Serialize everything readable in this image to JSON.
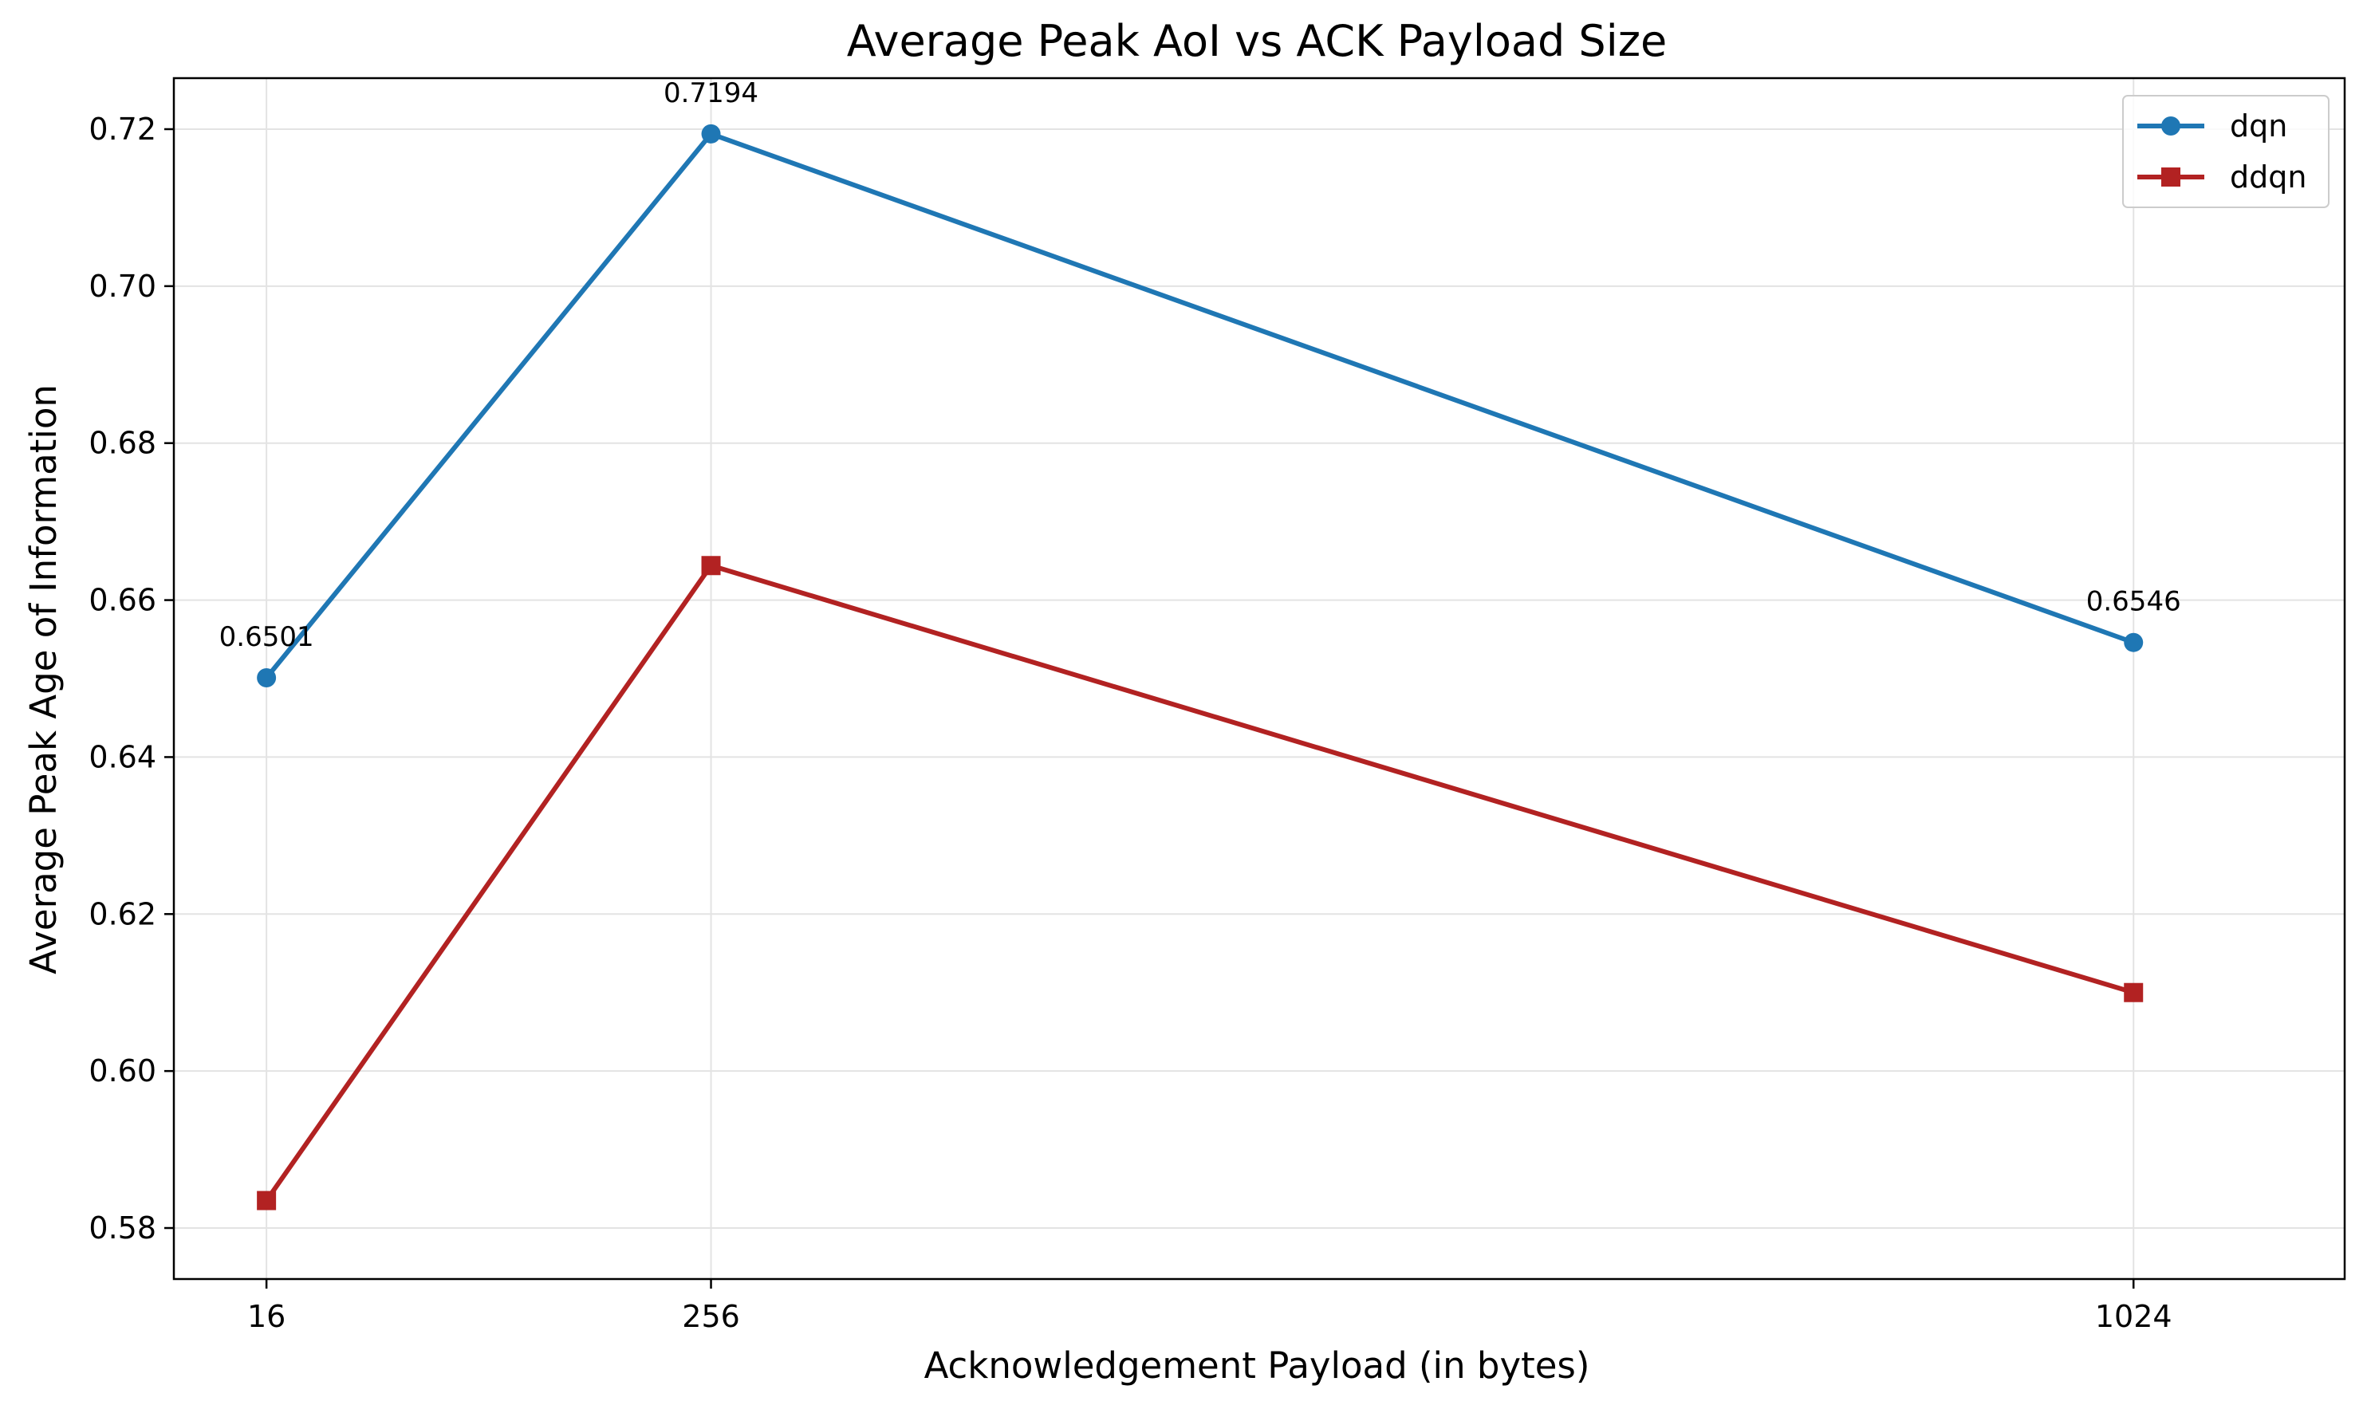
{
  "chart_data": {
    "type": "line",
    "title": "Average Peak AoI vs ACK Payload Size",
    "xlabel": "Acknowledgement Payload (in bytes)",
    "ylabel": "Average Peak Age of Information",
    "x": [
      16,
      256,
      1024
    ],
    "x_tick_labels": [
      "16",
      "256",
      "1024"
    ],
    "xlim": [
      -34,
      1138
    ],
    "ylim": [
      0.5735,
      0.7265
    ],
    "y_ticks": [
      0.58,
      0.6,
      0.62,
      0.64,
      0.66,
      0.68,
      0.7,
      0.72
    ],
    "y_tick_labels": [
      "0.58",
      "0.60",
      "0.62",
      "0.64",
      "0.66",
      "0.68",
      "0.70",
      "0.72"
    ],
    "grid": true,
    "legend_position": "top-right",
    "series": [
      {
        "name": "dqn",
        "values": [
          0.6501,
          0.7194,
          0.6546
        ],
        "color": "#1f77b4",
        "marker": "circle",
        "data_labels": [
          "0.6501",
          "0.7194",
          "0.6546"
        ]
      },
      {
        "name": "ddqn",
        "values": [
          0.5835,
          0.6644,
          0.61
        ],
        "color": "#b22222",
        "marker": "square",
        "data_labels": []
      }
    ]
  }
}
